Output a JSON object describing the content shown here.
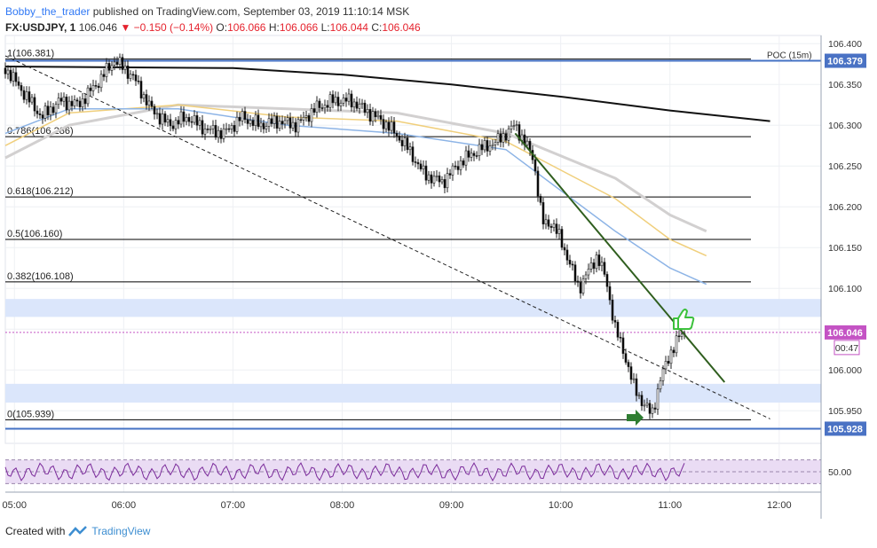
{
  "header": {
    "author": "Bobby_the_trader",
    "published": " published on TradingView.com, September 03, 2019 11:10:14 MSK",
    "symbol": "FX:USDJPY, 1",
    "last": "106.046",
    "change": "−0.150 (−0.14%)",
    "o_label": "O:",
    "o": "106.066",
    "h_label": "H:",
    "h": "106.066",
    "l_label": "L:",
    "l": "106.044",
    "c_label": "C:",
    "c": "106.046"
  },
  "footer": {
    "created_with": "Created with",
    "brand": "TradingView"
  },
  "colors": {
    "up": "#ffffff",
    "down": "#000000",
    "fib": "#000000",
    "hline": "#4472c4",
    "zone": "#dbe6fb",
    "ema_fast": "#8db4e6",
    "ema_mid": "#f0cf7c",
    "ema_slow": "#d2d0d0",
    "ma_long": "#111111",
    "trend": "#2f5e1e",
    "rsi": "#7a2a9a",
    "rsi_band": "#eadcf4",
    "price_tag": "#c453c4",
    "level_tag": "#4a72c4"
  },
  "chart_data": {
    "type": "candlestick",
    "ylim": [
      105.91,
      106.41
    ],
    "y_ticks": [
      "106.400",
      "106.350",
      "106.300",
      "106.250",
      "106.200",
      "106.150",
      "106.100",
      "106.050",
      "106.000",
      "105.950"
    ],
    "x_ticks": [
      "05:00",
      "06:00",
      "07:00",
      "08:00",
      "09:00",
      "10:00",
      "11:00",
      "12:00"
    ],
    "fib_levels": [
      {
        "label": "1(106.381)",
        "value": 106.381
      },
      {
        "label": "0.786(106.286)",
        "value": 106.286
      },
      {
        "label": "0.618(106.212)",
        "value": 106.212
      },
      {
        "label": "0.5(106.160)",
        "value": 106.16
      },
      {
        "label": "0.382(106.108)",
        "value": 106.108
      },
      {
        "label": "0(105.939)",
        "value": 105.939
      }
    ],
    "horizontal_levels": [
      {
        "label": "106.379",
        "value": 106.379,
        "note": "POC (15m)"
      },
      {
        "label": "105.928",
        "value": 105.928
      }
    ],
    "zones": [
      [
        106.065,
        106.087
      ],
      [
        105.96,
        105.983
      ]
    ],
    "current_price": {
      "label": "106.046",
      "value": 106.046,
      "countdown": "00:47"
    },
    "price_path": [
      [
        "04:55",
        106.37
      ],
      [
        "05:05",
        106.34
      ],
      [
        "05:15",
        106.31
      ],
      [
        "05:25",
        106.33
      ],
      [
        "05:35",
        106.325
      ],
      [
        "05:45",
        106.35
      ],
      [
        "05:55",
        106.38
      ],
      [
        "06:05",
        106.36
      ],
      [
        "06:15",
        106.32
      ],
      [
        "06:25",
        106.3
      ],
      [
        "06:35",
        106.31
      ],
      [
        "06:45",
        106.295
      ],
      [
        "06:55",
        106.29
      ],
      [
        "07:05",
        106.31
      ],
      [
        "07:15",
        106.3
      ],
      [
        "07:25",
        106.305
      ],
      [
        "07:35",
        106.3
      ],
      [
        "07:45",
        106.32
      ],
      [
        "07:55",
        106.33
      ],
      [
        "08:05",
        106.33
      ],
      [
        "08:15",
        106.315
      ],
      [
        "08:25",
        106.3
      ],
      [
        "08:35",
        106.275
      ],
      [
        "08:45",
        106.24
      ],
      [
        "08:55",
        106.23
      ],
      [
        "09:05",
        106.255
      ],
      [
        "09:15",
        106.27
      ],
      [
        "09:25",
        106.28
      ],
      [
        "09:35",
        106.3
      ],
      [
        "09:45",
        106.26
      ],
      [
        "09:50",
        106.18
      ],
      [
        "09:55",
        106.18
      ],
      [
        "10:00",
        106.16
      ],
      [
        "10:05",
        106.13
      ],
      [
        "10:10",
        106.1
      ],
      [
        "10:15",
        106.12
      ],
      [
        "10:20",
        106.14
      ],
      [
        "10:25",
        106.11
      ],
      [
        "10:30",
        106.05
      ],
      [
        "10:35",
        106.02
      ],
      [
        "10:40",
        105.98
      ],
      [
        "10:45",
        105.96
      ],
      [
        "10:50",
        105.945
      ],
      [
        "10:55",
        105.99
      ],
      [
        "11:00",
        106.02
      ],
      [
        "11:05",
        106.04
      ],
      [
        "11:08",
        106.046
      ]
    ],
    "ma_long": [
      [
        "04:55",
        106.372
      ],
      [
        "07:00",
        106.37
      ],
      [
        "08:00",
        106.362
      ],
      [
        "09:00",
        106.35
      ],
      [
        "10:00",
        106.335
      ],
      [
        "11:00",
        106.318
      ],
      [
        "11:55",
        106.305
      ]
    ],
    "ema_slow": [
      [
        "04:55",
        106.26
      ],
      [
        "05:30",
        106.3
      ],
      [
        "06:30",
        106.325
      ],
      [
        "07:30",
        106.32
      ],
      [
        "08:30",
        106.315
      ],
      [
        "09:30",
        106.29
      ],
      [
        "10:30",
        106.235
      ],
      [
        "11:00",
        106.19
      ],
      [
        "11:20",
        106.17
      ]
    ],
    "ema_mid": [
      [
        "04:55",
        106.275
      ],
      [
        "05:30",
        106.315
      ],
      [
        "06:30",
        106.325
      ],
      [
        "07:30",
        106.31
      ],
      [
        "08:30",
        106.305
      ],
      [
        "09:30",
        106.28
      ],
      [
        "10:30",
        106.21
      ],
      [
        "11:00",
        106.16
      ],
      [
        "11:20",
        106.14
      ]
    ],
    "ema_fast": [
      [
        "04:55",
        106.29
      ],
      [
        "05:30",
        106.32
      ],
      [
        "06:30",
        106.32
      ],
      [
        "07:30",
        106.3
      ],
      [
        "08:30",
        106.29
      ],
      [
        "09:30",
        106.27
      ],
      [
        "10:30",
        106.17
      ],
      [
        "11:00",
        106.125
      ],
      [
        "11:20",
        106.105
      ]
    ],
    "dashed_trendline": [
      [
        "04:55",
        106.385
      ],
      [
        "11:55",
        105.94
      ]
    ],
    "trendline": [
      [
        "09:35",
        106.29
      ],
      [
        "11:30",
        105.985
      ]
    ],
    "rsi": {
      "ylim": [
        20,
        80
      ],
      "ticks": [
        "50.00"
      ],
      "band": [
        30,
        70
      ]
    },
    "annotations": [
      "thumbs-up-icon",
      "arrow-right-icon"
    ]
  }
}
